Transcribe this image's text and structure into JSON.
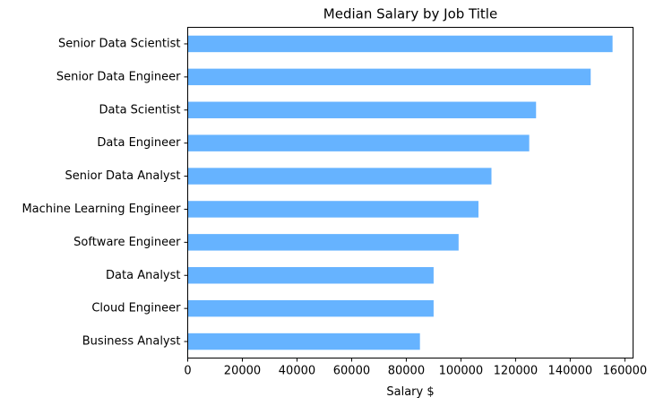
{
  "chart_data": {
    "type": "bar",
    "orientation": "horizontal",
    "title": "Median Salary by Job Title",
    "xlabel": "Salary $",
    "ylabel": "",
    "xlim": [
      0,
      163000
    ],
    "xticks": [
      0,
      20000,
      40000,
      60000,
      80000,
      100000,
      120000,
      140000,
      160000
    ],
    "categories": [
      "Senior Data Scientist",
      "Senior Data Engineer",
      "Data Scientist",
      "Data Engineer",
      "Senior Data Analyst",
      "Machine Learning Engineer",
      "Software Engineer",
      "Data Analyst",
      "Cloud Engineer",
      "Business Analyst"
    ],
    "values": [
      155500,
      147500,
      127500,
      125000,
      111175,
      106415,
      99150,
      90000,
      90000,
      85000
    ],
    "bar_color": "#66b3ff",
    "grid": false,
    "legend": false
  }
}
